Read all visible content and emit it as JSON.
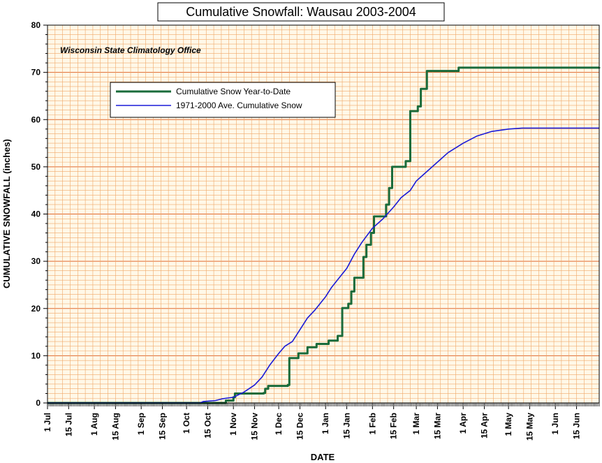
{
  "chart_data": {
    "type": "line",
    "title": "Cumulative Snowfall: Wausau 2003-2004",
    "annotation": "Wisconsin State Climatology Office",
    "xlabel": "DATE",
    "ylabel": "CUMULATIVE SNOWFALL (inches)",
    "ylim": [
      0,
      80
    ],
    "yticks": [
      0,
      10,
      20,
      30,
      40,
      50,
      60,
      70,
      80
    ],
    "xlim": [
      "2003-07-01",
      "2004-06-30"
    ],
    "xtick_labels": [
      {
        "date": "2003-07-01",
        "label": "1 Jul"
      },
      {
        "date": "2003-07-15",
        "label": "15 Jul"
      },
      {
        "date": "2003-08-01",
        "label": "1 Aug"
      },
      {
        "date": "2003-08-15",
        "label": "15 Aug"
      },
      {
        "date": "2003-09-01",
        "label": "1 Sep"
      },
      {
        "date": "2003-09-15",
        "label": "15 Sep"
      },
      {
        "date": "2003-10-01",
        "label": "1 Oct"
      },
      {
        "date": "2003-10-15",
        "label": "15 Oct"
      },
      {
        "date": "2003-11-01",
        "label": "1 Nov"
      },
      {
        "date": "2003-11-15",
        "label": "15 Nov"
      },
      {
        "date": "2003-12-01",
        "label": "1 Dec"
      },
      {
        "date": "2003-12-15",
        "label": "15 Dec"
      },
      {
        "date": "2004-01-01",
        "label": "1 Jan"
      },
      {
        "date": "2004-01-15",
        "label": "15 Jan"
      },
      {
        "date": "2004-02-01",
        "label": "1 Feb"
      },
      {
        "date": "2004-02-15",
        "label": "15 Feb"
      },
      {
        "date": "2004-03-01",
        "label": "1 Mar"
      },
      {
        "date": "2004-03-15",
        "label": "15 Mar"
      },
      {
        "date": "2004-04-01",
        "label": "1 Apr"
      },
      {
        "date": "2004-04-15",
        "label": "15 Apr"
      },
      {
        "date": "2004-05-01",
        "label": "1 May"
      },
      {
        "date": "2004-05-15",
        "label": "15 May"
      },
      {
        "date": "2004-06-01",
        "label": "1 Jun"
      },
      {
        "date": "2004-06-15",
        "label": "15 Jun"
      }
    ],
    "grid": true,
    "legend_position": "upper-left",
    "colors": {
      "background": "#fff8e8",
      "grid": "#f0a868",
      "grid_major": "#e06a30"
    },
    "series": [
      {
        "name": "Cumulative Snow Year-to-Date",
        "color": "#1a6b3a",
        "style": "step",
        "points": [
          [
            "2003-07-01",
            0
          ],
          [
            "2003-10-16",
            0
          ],
          [
            "2003-10-27",
            0.5
          ],
          [
            "2003-11-01",
            1.2
          ],
          [
            "2003-11-02",
            2.0
          ],
          [
            "2003-11-21",
            2.1
          ],
          [
            "2003-11-22",
            3.0
          ],
          [
            "2003-11-24",
            3.6
          ],
          [
            "2003-12-07",
            3.8
          ],
          [
            "2003-12-08",
            9.5
          ],
          [
            "2003-12-14",
            10.5
          ],
          [
            "2003-12-20",
            11.8
          ],
          [
            "2003-12-26",
            12.5
          ],
          [
            "2004-01-03",
            13.2
          ],
          [
            "2004-01-09",
            14.2
          ],
          [
            "2004-01-12",
            20.1
          ],
          [
            "2004-01-16",
            21.0
          ],
          [
            "2004-01-18",
            23.6
          ],
          [
            "2004-01-20",
            26.5
          ],
          [
            "2004-01-26",
            30.9
          ],
          [
            "2004-01-28",
            33.5
          ],
          [
            "2004-01-31",
            36.0
          ],
          [
            "2004-02-02",
            39.5
          ],
          [
            "2004-02-10",
            42.0
          ],
          [
            "2004-02-12",
            45.5
          ],
          [
            "2004-02-14",
            50.0
          ],
          [
            "2004-02-23",
            51.2
          ],
          [
            "2004-02-26",
            61.8
          ],
          [
            "2004-03-02",
            62.8
          ],
          [
            "2004-03-04",
            66.5
          ],
          [
            "2004-03-08",
            70.3
          ],
          [
            "2004-03-29",
            71.0
          ],
          [
            "2004-06-30",
            71.1
          ]
        ]
      },
      {
        "name": "1971-2000 Ave. Cumulative Snow",
        "color": "#1a1ad8",
        "style": "line",
        "points": [
          [
            "2003-07-01",
            0
          ],
          [
            "2003-10-10",
            0
          ],
          [
            "2003-10-12",
            0.3
          ],
          [
            "2003-10-20",
            0.5
          ],
          [
            "2003-10-25",
            0.9
          ],
          [
            "2003-11-01",
            1.2
          ],
          [
            "2003-11-08",
            2.3
          ],
          [
            "2003-11-15",
            3.8
          ],
          [
            "2003-11-20",
            5.5
          ],
          [
            "2003-11-25",
            8.0
          ],
          [
            "2003-12-01",
            10.5
          ],
          [
            "2003-12-05",
            12.0
          ],
          [
            "2003-12-10",
            13.0
          ],
          [
            "2003-12-15",
            15.5
          ],
          [
            "2003-12-20",
            18.0
          ],
          [
            "2003-12-25",
            19.7
          ],
          [
            "2004-01-01",
            22.5
          ],
          [
            "2004-01-05",
            24.5
          ],
          [
            "2004-01-10",
            26.5
          ],
          [
            "2004-01-15",
            28.5
          ],
          [
            "2004-01-20",
            31.5
          ],
          [
            "2004-01-25",
            34.0
          ],
          [
            "2004-02-01",
            37.0
          ],
          [
            "2004-02-08",
            39.0
          ],
          [
            "2004-02-15",
            41.5
          ],
          [
            "2004-02-20",
            43.5
          ],
          [
            "2004-02-26",
            45.0
          ],
          [
            "2004-03-01",
            47.0
          ],
          [
            "2004-03-08",
            49.0
          ],
          [
            "2004-03-15",
            51.0
          ],
          [
            "2004-03-22",
            53.0
          ],
          [
            "2004-04-01",
            55.0
          ],
          [
            "2004-04-10",
            56.5
          ],
          [
            "2004-04-20",
            57.5
          ],
          [
            "2004-05-01",
            58.0
          ],
          [
            "2004-05-10",
            58.2
          ],
          [
            "2004-06-30",
            58.2
          ]
        ]
      }
    ]
  }
}
